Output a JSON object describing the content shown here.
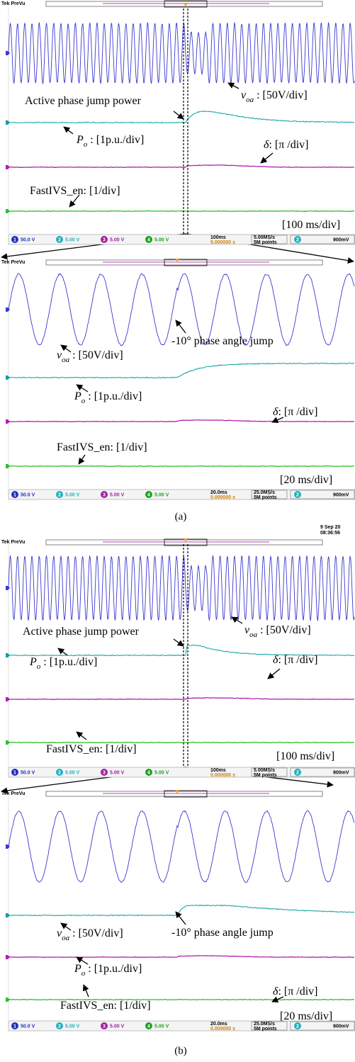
{
  "captions": [
    "(a)",
    "(b)"
  ],
  "panels": [
    {
      "header": "Tek PreVu",
      "labels": [
        [
          {
            "text": "Active phase jump power"
          }
        ],
        [
          {
            "text": "v",
            "style": "italic"
          },
          {
            "text": "oa",
            "style": "sub"
          },
          {
            "text": " : [50V/div]"
          }
        ],
        [
          {
            "text": "P",
            "style": "italic"
          },
          {
            "text": "o",
            "style": "sub"
          },
          {
            "text": " : [1p.u./div]"
          }
        ],
        [
          {
            "text": "δ",
            "style": "italic"
          },
          {
            "text": ": [π /div]"
          }
        ],
        [
          {
            "text": "FastIVS_en: [1/div]"
          }
        ],
        [
          {
            "text": "[100 ms/div]"
          }
        ]
      ],
      "status": {
        "channels": [
          {
            "num": "1",
            "scale": "50.0 V"
          },
          {
            "num": "2",
            "scale": "5.00 V"
          },
          {
            "num": "3",
            "scale": "5.00 V"
          },
          {
            "num": "4",
            "scale": "5.00 V"
          }
        ],
        "timebase": "100ms",
        "offset": "0.000000 s",
        "rate": "5.00MS/s",
        "points": "5M points",
        "trigger_source": "2",
        "trigger_level": "900mV"
      }
    },
    {
      "header": "Tek PreVu",
      "labels": [
        [
          {
            "text": "-10° phase angle jump"
          }
        ],
        [
          {
            "text": "v",
            "style": "italic"
          },
          {
            "text": "oa",
            "style": "sub"
          },
          {
            "text": " : [50V/div]"
          }
        ],
        [
          {
            "text": "P",
            "style": "italic"
          },
          {
            "text": "o",
            "style": "sub"
          },
          {
            "text": " : [1p.u./div]"
          }
        ],
        [
          {
            "text": "δ",
            "style": "italic"
          },
          {
            "text": ": [π /div]"
          }
        ],
        [
          {
            "text": "FastIVS_en: [1/div]"
          }
        ],
        [
          {
            "text": "[20 ms/div]"
          }
        ]
      ],
      "status": {
        "channels": [
          {
            "num": "1",
            "scale": "50.0 V"
          },
          {
            "num": "2",
            "scale": "5.00 V"
          },
          {
            "num": "3",
            "scale": "5.00 V"
          },
          {
            "num": "4",
            "scale": "5.00 V"
          }
        ],
        "timebase": "20.0ms",
        "offset": "0.000000 s",
        "rate": "25.0MS/s",
        "points": "5M points",
        "trigger_source": "2",
        "trigger_level": "900mV"
      }
    },
    {
      "header": "Tek PreVu",
      "timestamp": [
        "9 Sep 20",
        "08:36:56"
      ],
      "labels": [
        [
          {
            "text": "Active phase jump power"
          }
        ],
        [
          {
            "text": "v",
            "style": "italic"
          },
          {
            "text": "oa",
            "style": "sub"
          },
          {
            "text": " : [50V/div]"
          }
        ],
        [
          {
            "text": "P",
            "style": "italic"
          },
          {
            "text": "o",
            "style": "sub"
          },
          {
            "text": " : [1p.u./div]"
          }
        ],
        [
          {
            "text": "δ",
            "style": "italic"
          },
          {
            "text": ": [π /div]"
          }
        ],
        [
          {
            "text": "FastIVS_en: [1/div]"
          }
        ],
        [
          {
            "text": "[100 ms/div]"
          }
        ]
      ],
      "status": {
        "channels": [
          {
            "num": "1",
            "scale": "50.0 V"
          },
          {
            "num": "2",
            "scale": "5.00 V"
          },
          {
            "num": "3",
            "scale": "5.00 V"
          },
          {
            "num": "4",
            "scale": "5.00 V"
          }
        ],
        "timebase": "100ms",
        "offset": "0.000000 s",
        "rate": "5.00MS/s",
        "points": "5M points",
        "trigger_source": "2",
        "trigger_level": "900mV"
      }
    },
    {
      "header": "Tek PreVu",
      "labels": [
        [
          {
            "text": "-10° phase angle jump"
          }
        ],
        [
          {
            "text": "v",
            "style": "italic"
          },
          {
            "text": "oa",
            "style": "sub"
          },
          {
            "text": " : [50V/div]"
          }
        ],
        [
          {
            "text": "P",
            "style": "italic"
          },
          {
            "text": "o",
            "style": "sub"
          },
          {
            "text": " : [1p.u./div]"
          }
        ],
        [
          {
            "text": "δ",
            "style": "italic"
          },
          {
            "text": ": [π /div]"
          }
        ],
        [
          {
            "text": "FastIVS_en: [1/div]"
          }
        ],
        [
          {
            "text": "[20 ms/div]"
          }
        ]
      ],
      "status": {
        "channels": [
          {
            "num": "1",
            "scale": "50.0 V"
          },
          {
            "num": "2",
            "scale": "5.00 V"
          },
          {
            "num": "3",
            "scale": "5.00 V"
          },
          {
            "num": "4",
            "scale": "5.00 V"
          }
        ],
        "timebase": "20.0ms",
        "offset": "0.000000 s",
        "rate": "25.0MS/s",
        "points": "5M points",
        "trigger_source": "2",
        "trigger_level": "900mV"
      }
    }
  ]
}
